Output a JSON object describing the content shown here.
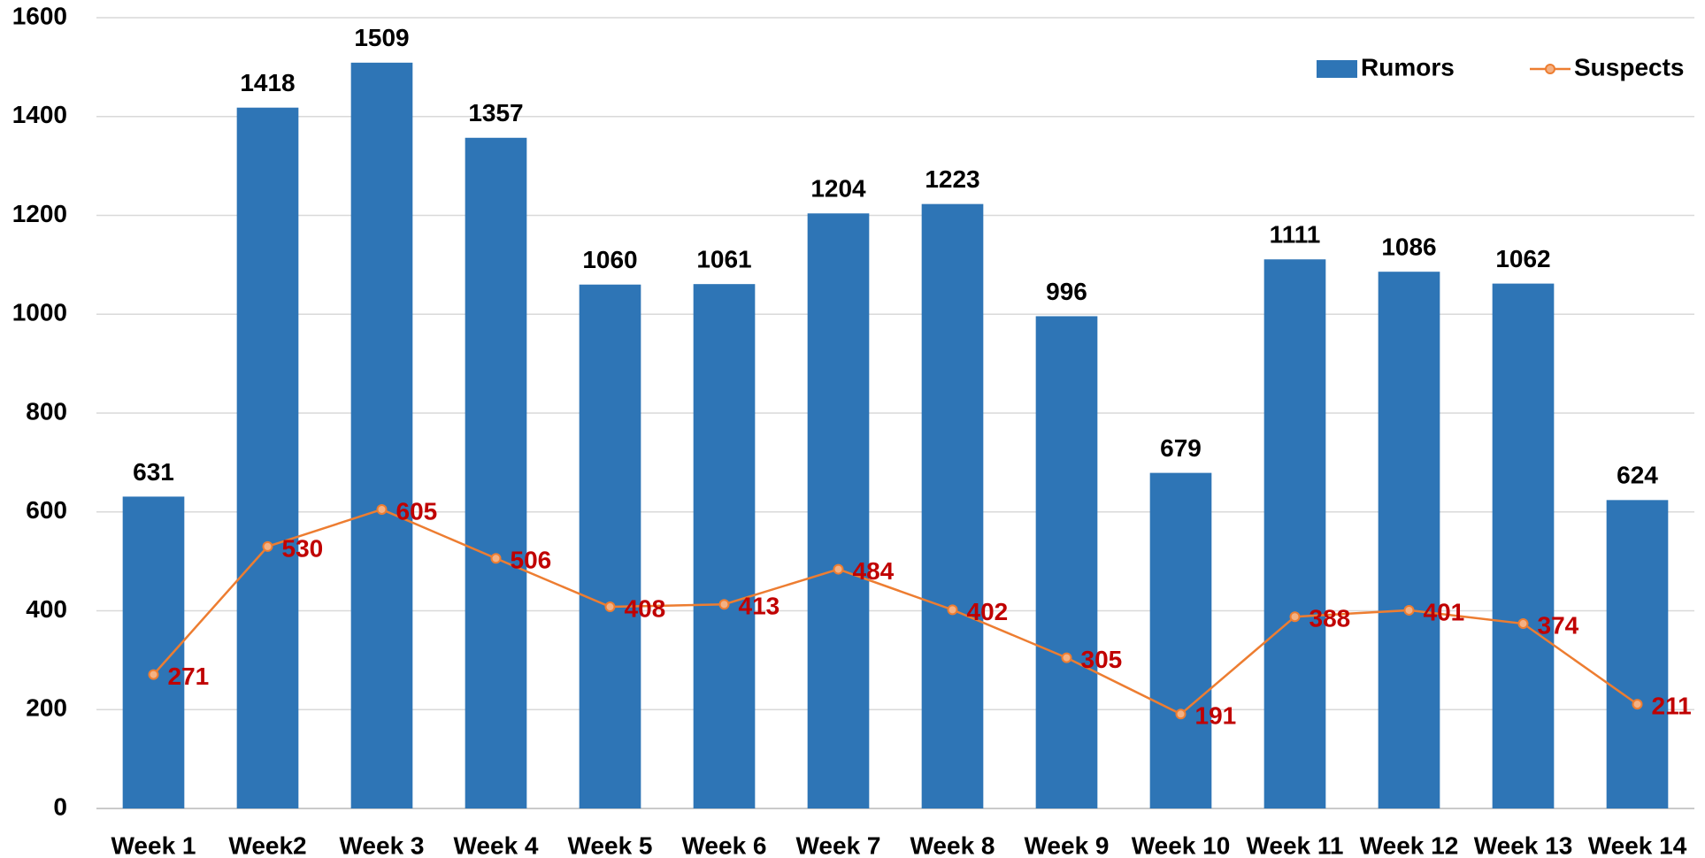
{
  "chart_data": {
    "type": "bar_line",
    "categories": [
      "Week 1",
      "Week2",
      "Week 3",
      "Week 4",
      "Week 5",
      "Week 6",
      "Week 7",
      "Week 8",
      "Week 9",
      "Week 10",
      "Week 11",
      "Week 12",
      "Week 13",
      "Week 14"
    ],
    "series": [
      {
        "name": "Rumors",
        "type": "bar",
        "color": "#2e75b6",
        "label_color": "#000000",
        "values": [
          631,
          1418,
          1509,
          1357,
          1060,
          1061,
          1204,
          1223,
          996,
          679,
          1111,
          1086,
          1062,
          624
        ]
      },
      {
        "name": "Suspects",
        "type": "line",
        "color": "#ed7d31",
        "label_color": "#c00000",
        "values": [
          271,
          530,
          605,
          506,
          408,
          413,
          484,
          402,
          305,
          191,
          388,
          401,
          374,
          211
        ]
      }
    ],
    "ylim": [
      0,
      1600
    ],
    "yticks": [
      0,
      200,
      400,
      600,
      800,
      1000,
      1200,
      1400,
      1600
    ],
    "grid": true,
    "legend": "top-right"
  }
}
